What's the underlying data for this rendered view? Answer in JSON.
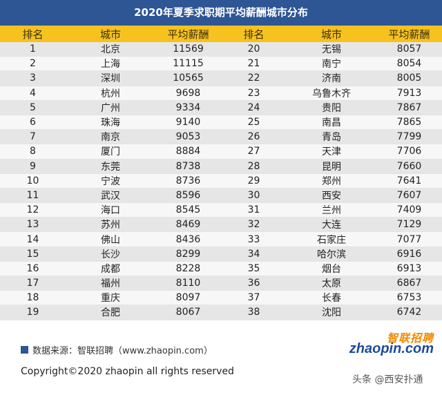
{
  "title": "2020年夏季求职期平均薪酬城市分布",
  "headers": [
    "排名",
    "城市",
    "平均薪酬",
    "排名",
    "城市",
    "平均薪酬"
  ],
  "rows": [
    [
      "1",
      "北京",
      "11569",
      "20",
      "无锡",
      "8057"
    ],
    [
      "2",
      "上海",
      "11115",
      "21",
      "南宁",
      "8054"
    ],
    [
      "3",
      "深圳",
      "10565",
      "22",
      "济南",
      "8005"
    ],
    [
      "4",
      "杭州",
      "9698",
      "23",
      "乌鲁木齐",
      "7913"
    ],
    [
      "5",
      "广州",
      "9334",
      "24",
      "贵阳",
      "7867"
    ],
    [
      "6",
      "珠海",
      "9140",
      "25",
      "南昌",
      "7865"
    ],
    [
      "7",
      "南京",
      "9053",
      "26",
      "青岛",
      "7799"
    ],
    [
      "8",
      "厦门",
      "8884",
      "27",
      "天津",
      "7706"
    ],
    [
      "9",
      "东莞",
      "8738",
      "28",
      "昆明",
      "7660"
    ],
    [
      "10",
      "宁波",
      "8736",
      "29",
      "郑州",
      "7641"
    ],
    [
      "11",
      "武汉",
      "8596",
      "30",
      "西安",
      "7607"
    ],
    [
      "12",
      "海口",
      "8545",
      "31",
      "兰州",
      "7409"
    ],
    [
      "13",
      "苏州",
      "8469",
      "32",
      "大连",
      "7129"
    ],
    [
      "14",
      "佛山",
      "8436",
      "33",
      "石家庄",
      "7077"
    ],
    [
      "15",
      "长沙",
      "8299",
      "34",
      "哈尔滨",
      "6916"
    ],
    [
      "16",
      "成都",
      "8228",
      "35",
      "烟台",
      "6913"
    ],
    [
      "17",
      "福州",
      "8110",
      "36",
      "太原",
      "6867"
    ],
    [
      "18",
      "重庆",
      "8097",
      "37",
      "长春",
      "6753"
    ],
    [
      "19",
      "合肥",
      "8067",
      "38",
      "沈阳",
      "6742"
    ]
  ],
  "source": "数据来源：智联招聘（www.zhaopin.com）",
  "logo": {
    "cn": "智联招聘",
    "en": "zhaopin.com"
  },
  "copyright": "Copyright©2020 zhaopin all rights reserved",
  "watermark": "头条 @西安扑通",
  "colors": {
    "title_bg": "#2e5594",
    "header_bg": "#f7c21e",
    "row_odd": "#e6e6e6",
    "row_even": "#f7f7f7"
  }
}
